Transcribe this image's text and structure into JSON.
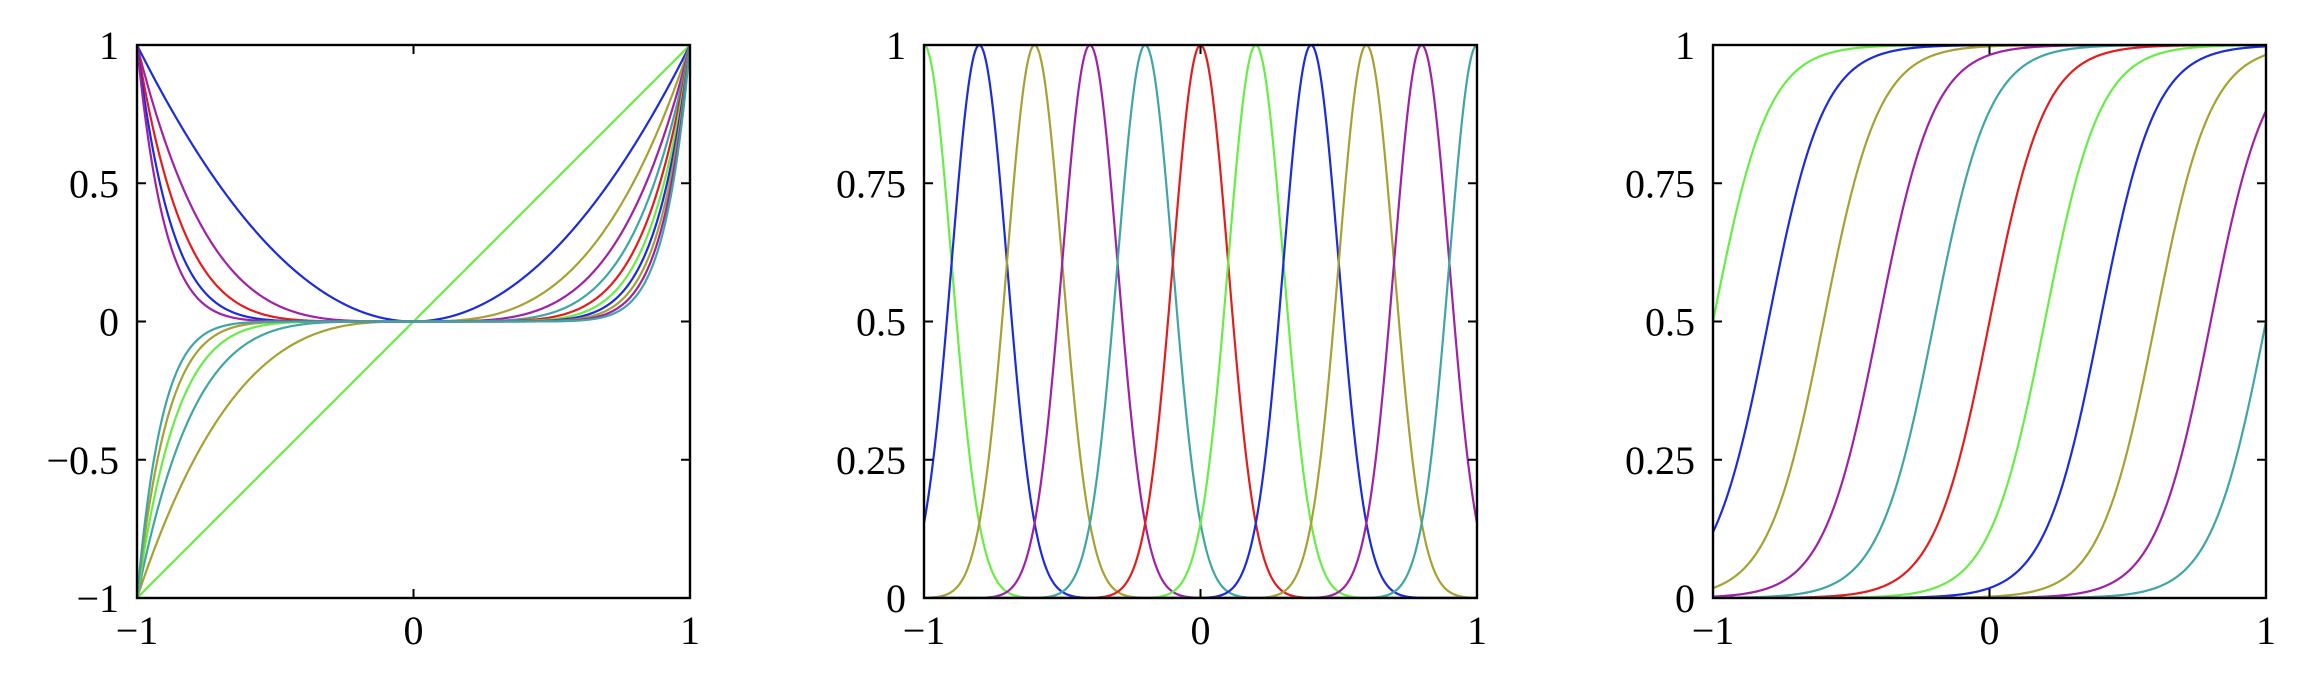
{
  "chart_data": [
    {
      "type": "line",
      "title": "",
      "xlabel": "",
      "ylabel": "",
      "xlim": [
        -1,
        1
      ],
      "ylim": [
        -1,
        1
      ],
      "xticks": [
        -1,
        0,
        1
      ],
      "yticks": [
        -1,
        -0.5,
        0,
        0.5,
        1
      ],
      "xtick_labels": [
        "−1",
        "0",
        "1"
      ],
      "ytick_labels": [
        "−1",
        "−0.5",
        "0",
        "0.5",
        "1"
      ],
      "grid": false,
      "legend": "none",
      "description_of_series": "monomials x^n, n = 1..11",
      "series": [
        {
          "exponent": 1,
          "color": "#66ee44"
        },
        {
          "exponent": 2,
          "color": "#1a2be0"
        },
        {
          "exponent": 3,
          "color": "#a8a030"
        },
        {
          "exponent": 4,
          "color": "#a021a8"
        },
        {
          "exponent": 5,
          "color": "#3fa6a6"
        },
        {
          "exponent": 6,
          "color": "#e51c1c"
        },
        {
          "exponent": 7,
          "color": "#66ee44"
        },
        {
          "exponent": 8,
          "color": "#1a2be0"
        },
        {
          "exponent": 9,
          "color": "#a8a030"
        },
        {
          "exponent": 10,
          "color": "#a021a8"
        },
        {
          "exponent": 11,
          "color": "#3fa6a6"
        }
      ]
    },
    {
      "type": "line",
      "title": "",
      "xlabel": "",
      "ylabel": "",
      "xlim": [
        -1,
        1
      ],
      "ylim": [
        0,
        1
      ],
      "xticks": [
        -1,
        0,
        1
      ],
      "yticks": [
        0,
        0.25,
        0.5,
        0.75,
        1
      ],
      "xtick_labels": [
        "−1",
        "0",
        "1"
      ],
      "ytick_labels": [
        "0",
        "0.25",
        "0.5",
        "0.75",
        "1"
      ],
      "grid": false,
      "legend": "none",
      "description_of_series": "Gaussian bumps exp(-(x-c)^2/(2*s^2)), s = 0.1",
      "sigma": 0.1,
      "series": [
        {
          "center": -1.0,
          "color": "#66ee44"
        },
        {
          "center": -0.8,
          "color": "#1a2be0"
        },
        {
          "center": -0.6,
          "color": "#a8a030"
        },
        {
          "center": -0.4,
          "color": "#a021a8"
        },
        {
          "center": -0.2,
          "color": "#3fa6a6"
        },
        {
          "center": 0.0,
          "color": "#e51c1c"
        },
        {
          "center": 0.2,
          "color": "#66ee44"
        },
        {
          "center": 0.4,
          "color": "#1a2be0"
        },
        {
          "center": 0.6,
          "color": "#a8a030"
        },
        {
          "center": 0.8,
          "color": "#a021a8"
        },
        {
          "center": 1.0,
          "color": "#3fa6a6"
        }
      ]
    },
    {
      "type": "line",
      "title": "",
      "xlabel": "",
      "ylabel": "",
      "xlim": [
        -1,
        1
      ],
      "ylim": [
        0,
        1
      ],
      "xticks": [
        -1,
        0,
        1
      ],
      "yticks": [
        0,
        0.25,
        0.5,
        0.75,
        1
      ],
      "xtick_labels": [
        "−1",
        "0",
        "1"
      ],
      "ytick_labels": [
        "0",
        "0.25",
        "0.5",
        "0.75",
        "1"
      ],
      "grid": false,
      "legend": "none",
      "description_of_series": "sigmoids 1/(1+exp(-(x-c)/s)), s = 0.1",
      "scale": 0.1,
      "series": [
        {
          "center": -1.0,
          "color": "#66ee44"
        },
        {
          "center": -0.8,
          "color": "#1a2be0"
        },
        {
          "center": -0.6,
          "color": "#a8a030"
        },
        {
          "center": -0.4,
          "color": "#a021a8"
        },
        {
          "center": -0.2,
          "color": "#3fa6a6"
        },
        {
          "center": 0.0,
          "color": "#e51c1c"
        },
        {
          "center": 0.2,
          "color": "#66ee44"
        },
        {
          "center": 0.4,
          "color": "#1a2be0"
        },
        {
          "center": 0.6,
          "color": "#a8a030"
        },
        {
          "center": 0.8,
          "color": "#a021a8"
        },
        {
          "center": 1.0,
          "color": "#3fa6a6"
        }
      ]
    }
  ]
}
